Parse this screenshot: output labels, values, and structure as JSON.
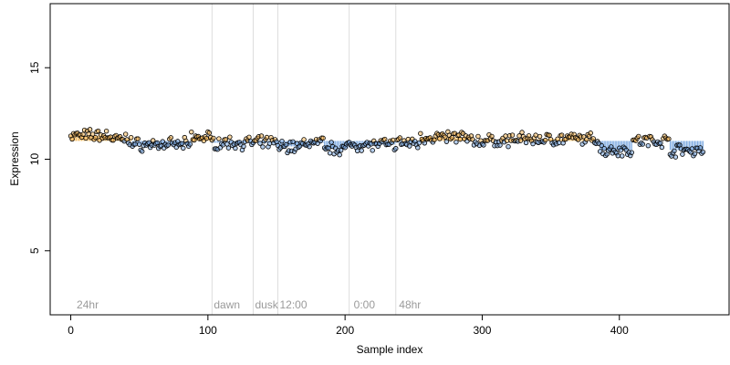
{
  "chart_data": {
    "type": "scatter",
    "xlabel": "Sample index",
    "ylabel": "Expression",
    "xlim": [
      -15,
      480
    ],
    "ylim": [
      1.5,
      18.5
    ],
    "x_ticks": [
      0,
      100,
      200,
      300,
      400
    ],
    "y_ticks": [
      5,
      10,
      15
    ],
    "baseline": 11.0,
    "colors": {
      "above": "#f5b85a",
      "below": "#7aa8e0",
      "phase_line": "#dddddd",
      "point_stroke": "#000000"
    },
    "phase_markers": [
      {
        "x": 103,
        "label": "dawn"
      },
      {
        "x": 133,
        "label": "dusk"
      },
      {
        "x": 151,
        "label": "12:00"
      },
      {
        "x": 203,
        "label": ""
      },
      {
        "x": 237,
        "label": ""
      }
    ],
    "phase_labels": [
      {
        "x": 3,
        "label": "24hr"
      },
      {
        "x": 205,
        "label": "0:00"
      },
      {
        "x": 238,
        "label": "48hr"
      }
    ],
    "segments": [
      {
        "x0": 0,
        "x1": 30,
        "y": 11.3
      },
      {
        "x0": 30,
        "x1": 45,
        "y": 11.1
      },
      {
        "x0": 45,
        "x1": 88,
        "y": 10.8
      },
      {
        "x0": 88,
        "x1": 103,
        "y": 11.2
      },
      {
        "x0": 103,
        "x1": 133,
        "y": 10.9
      },
      {
        "x0": 133,
        "x1": 151,
        "y": 10.9
      },
      {
        "x0": 151,
        "x1": 170,
        "y": 10.7
      },
      {
        "x0": 170,
        "x1": 185,
        "y": 10.9
      },
      {
        "x0": 185,
        "x1": 203,
        "y": 10.6
      },
      {
        "x0": 203,
        "x1": 237,
        "y": 10.8
      },
      {
        "x0": 237,
        "x1": 255,
        "y": 10.9
      },
      {
        "x0": 255,
        "x1": 290,
        "y": 11.2
      },
      {
        "x0": 290,
        "x1": 320,
        "y": 11.0
      },
      {
        "x0": 320,
        "x1": 386,
        "y": 11.1
      },
      {
        "x0": 386,
        "x1": 410,
        "y": 10.5
      },
      {
        "x0": 410,
        "x1": 437,
        "y": 11.0
      },
      {
        "x0": 437,
        "x1": 462,
        "y": 10.5
      }
    ],
    "noise_amplitude": 0.25,
    "sample_count": 462
  }
}
